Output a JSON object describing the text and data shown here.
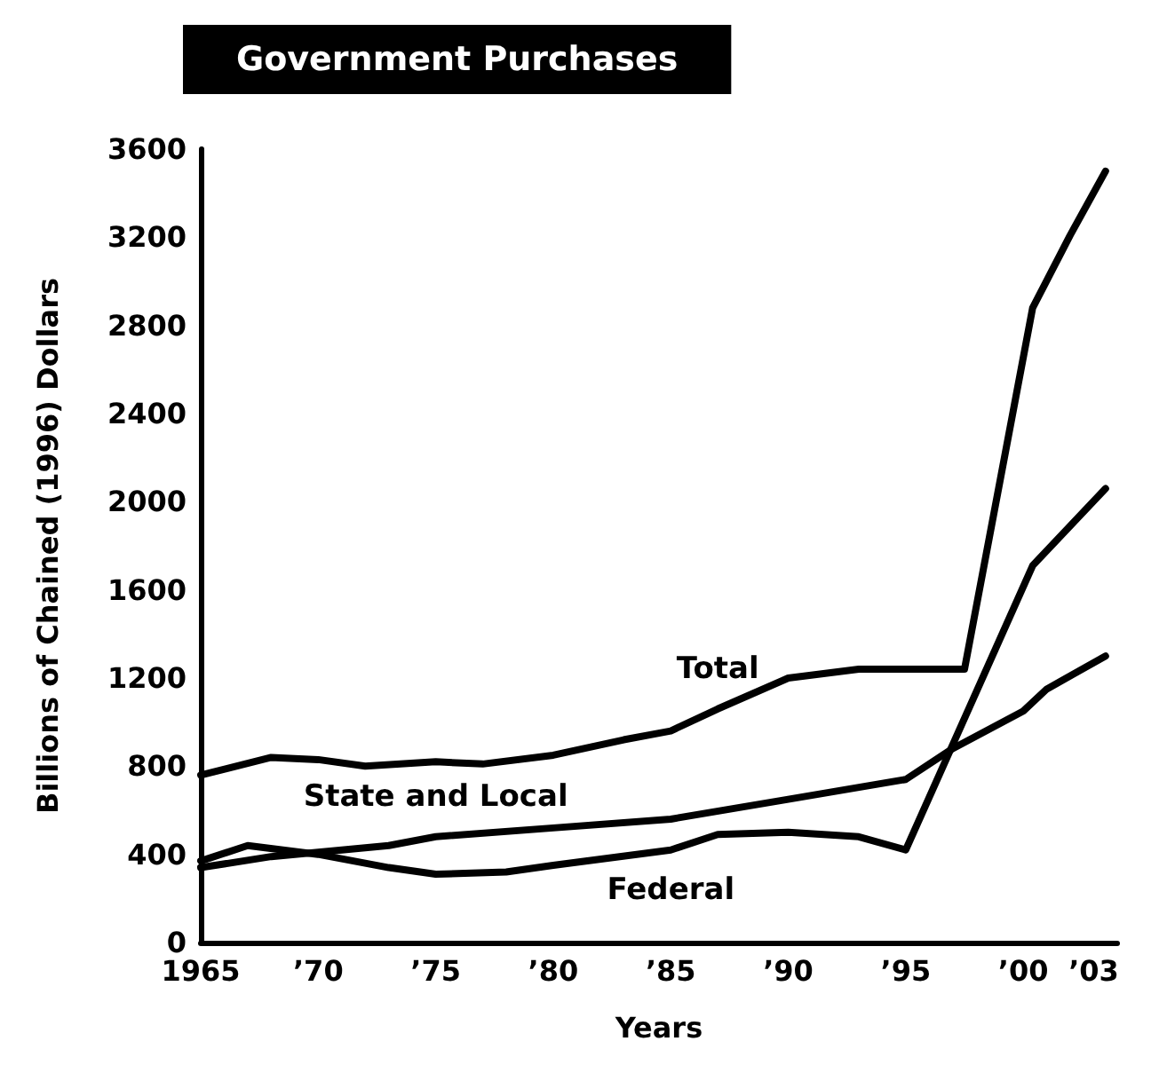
{
  "chart_data": {
    "type": "line",
    "title": "Government Purchases",
    "xlabel": "Years",
    "ylabel": "Billions of Chained (1996) Dollars",
    "xlim": [
      1965,
      2004
    ],
    "xticks": [
      1965,
      {
        "value": 1970,
        "label": "’70"
      },
      {
        "value": 1975,
        "label": "’75"
      },
      {
        "value": 1980,
        "label": "’80"
      },
      {
        "value": 1985,
        "label": "’85"
      },
      {
        "value": 1990,
        "label": "’90"
      },
      {
        "value": 1995,
        "label": "’95"
      },
      {
        "value": 2000,
        "label": "’00"
      },
      {
        "value": 2003,
        "label": "’03"
      }
    ],
    "ylim": [
      0,
      3600
    ],
    "yticks": [
      0,
      400,
      800,
      1200,
      1600,
      2000,
      2400,
      2800,
      3200,
      3600
    ],
    "grid": false,
    "legend": false,
    "marker": "none",
    "line_style": "solid",
    "series": [
      {
        "name": "Total",
        "color": "#000000",
        "x": [
          1965,
          1968,
          1970,
          1972,
          1975,
          1977,
          1980,
          1983,
          1985,
          1987,
          1990,
          1993,
          1997.5,
          2000.4,
          2002,
          2003.5
        ],
        "values": [
          760,
          840,
          830,
          800,
          820,
          810,
          850,
          920,
          960,
          1060,
          1200,
          1240,
          1240,
          2880,
          3210,
          3500
        ]
      },
      {
        "name": "State and Local",
        "color": "#000000",
        "x": [
          1965,
          1968,
          1970,
          1973,
          1975,
          1980,
          1985,
          1990,
          1995,
          1997,
          2000,
          2001,
          2003.5
        ],
        "values": [
          340,
          390,
          410,
          440,
          480,
          520,
          560,
          650,
          740,
          880,
          1050,
          1150,
          1300
        ]
      },
      {
        "name": "Federal",
        "color": "#000000",
        "x": [
          1965,
          1967,
          1970,
          1973,
          1975,
          1978,
          1980,
          1985,
          1987,
          1990,
          1993,
          1995,
          2000.4,
          2003.5
        ],
        "values": [
          370,
          440,
          400,
          340,
          310,
          320,
          350,
          420,
          490,
          500,
          480,
          420,
          1710,
          2060
        ]
      }
    ]
  }
}
